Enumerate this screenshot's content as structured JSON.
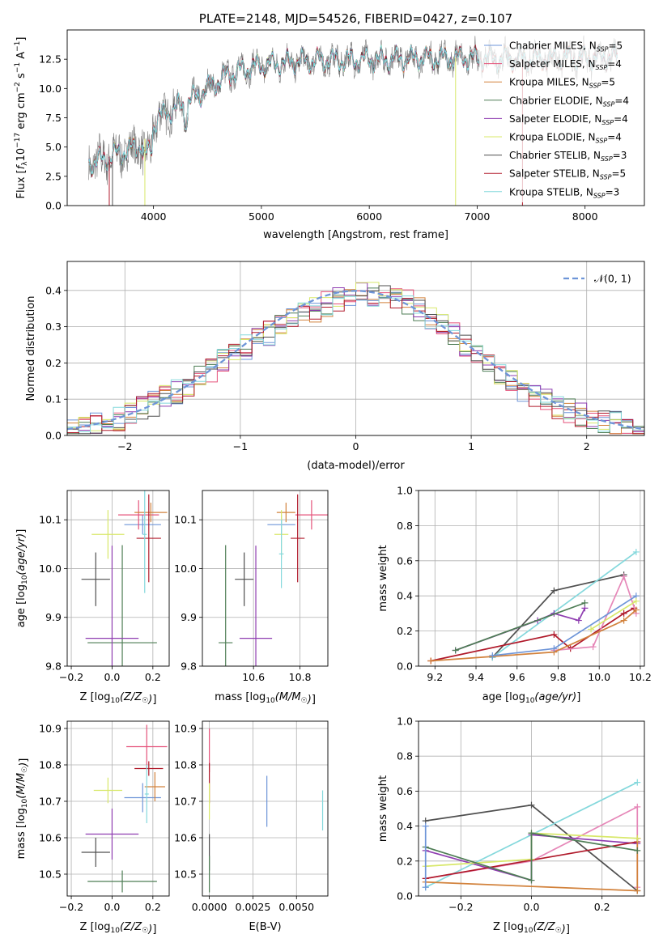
{
  "colors": {
    "chabrier_miles": "#6e95d8",
    "salpeter_miles": "#e5527a",
    "kroupa_miles": "#d2823c",
    "chabrier_elodie": "#4e7d55",
    "salpeter_elodie": "#8e3cb0",
    "kroupa_elodie": "#d8e86a",
    "chabrier_stelib": "#4f4f4f",
    "salpeter_stelib": "#b0192a",
    "kroupa_stelib": "#84d8dc",
    "pink": "#e687b8",
    "gauss": "#6e95d8"
  },
  "chart_data": [
    {
      "id": "spectrum",
      "type": "line",
      "title": "PLATE=2148, MJD=54526, FIBERID=0427, z=0.107",
      "xlabel": "wavelength [Angstrom, rest frame]",
      "ylabel": "Flux [f_λ 10^-17 erg cm^-2 s^-1 A^-1]",
      "xlim": [
        3200,
        8550
      ],
      "ylim": [
        0,
        15
      ],
      "xticks": [
        "4000",
        "5000",
        "6000",
        "7000",
        "8000"
      ],
      "yticks": [
        "0.0",
        "2.5",
        "5.0",
        "7.5",
        "10.0",
        "12.5"
      ],
      "legend": [
        {
          "name": "Chabrier MILES, N_SSP=5",
          "color": "chabrier_miles"
        },
        {
          "name": "Salpeter MILES, N_SSP=4",
          "color": "salpeter_miles"
        },
        {
          "name": "Kroupa MILES, N_SSP=5",
          "color": "kroupa_miles"
        },
        {
          "name": "Chabrier ELODIE, N_SSP=4",
          "color": "chabrier_elodie"
        },
        {
          "name": "Salpeter ELODIE, N_SSP=4",
          "color": "salpeter_elodie"
        },
        {
          "name": "Kroupa ELODIE, N_SSP=4",
          "color": "kroupa_elodie"
        },
        {
          "name": "Chabrier STELIB, N_SSP=3",
          "color": "chabrier_stelib"
        },
        {
          "name": "Salpeter STELIB, N_SSP=5",
          "color": "salpeter_stelib"
        },
        {
          "name": "Kroupa STELIB, N_SSP=3",
          "color": "kroupa_stelib"
        }
      ],
      "legend_placement": "right",
      "continuum": [
        [
          3400,
          3.6
        ],
        [
          3550,
          4.0
        ],
        [
          3700,
          4.5
        ],
        [
          3850,
          5.0
        ],
        [
          3950,
          6.0
        ],
        [
          4050,
          7.6
        ],
        [
          4300,
          8.7
        ],
        [
          4500,
          10.0
        ],
        [
          4700,
          11.2
        ],
        [
          4900,
          11.8
        ],
        [
          5200,
          12.2
        ],
        [
          5500,
          12.4
        ],
        [
          5800,
          12.4
        ],
        [
          6100,
          12.5
        ],
        [
          6500,
          12.6
        ],
        [
          6900,
          12.6
        ],
        [
          7300,
          12.5
        ],
        [
          7600,
          12.5
        ],
        [
          8000,
          12.6
        ],
        [
          8300,
          12.7
        ]
      ]
    },
    {
      "id": "residuals",
      "type": "line",
      "xlabel": "(data-model)/error",
      "ylabel": "Normed distribution",
      "xlim": [
        -2.5,
        2.5
      ],
      "ylim": [
        0,
        0.48
      ],
      "xticks": [
        "−2",
        "−1",
        "0",
        "1",
        "2"
      ],
      "yticks": [
        "0.0",
        "0.1",
        "0.2",
        "0.3",
        "0.4"
      ],
      "grid": true,
      "legend": [
        {
          "name": "𝒩(0, 1)",
          "color": "gauss"
        }
      ],
      "legend_placement": "top-right",
      "note": "step histograms of residuals for the nine fits plus N(0,1) curve"
    },
    {
      "id": "age_vs_Z",
      "type": "scatter",
      "xlabel": "Z [log10(Z/Z☉)]",
      "ylabel": "age [log10(age/yr)]",
      "xlim": [
        -0.22,
        0.28
      ],
      "ylim": [
        9.8,
        10.16
      ],
      "xticks": [
        "−0.2",
        "0.0",
        "0.2"
      ],
      "yticks": [
        "9.8",
        "9.9",
        "10.0",
        "10.1"
      ],
      "grid": true,
      "points": [
        {
          "x": 0.15,
          "y": 10.09,
          "xerr": 0.09,
          "yerr": 0.02,
          "color": "chabrier_miles"
        },
        {
          "x": 0.13,
          "y": 10.11,
          "xerr": 0.1,
          "yerr": 0.03,
          "color": "salpeter_miles"
        },
        {
          "x": 0.19,
          "y": 10.115,
          "xerr": 0.08,
          "yerr": 0.02,
          "color": "kroupa_miles"
        },
        {
          "x": 0.05,
          "y": 9.848,
          "xerr": 0.17,
          "yerr": 0.2,
          "color": "chabrier_elodie"
        },
        {
          "x": 0.0,
          "y": 9.857,
          "xerr": 0.13,
          "yerr": 0.19,
          "color": "salpeter_elodie"
        },
        {
          "x": -0.02,
          "y": 10.07,
          "xerr": 0.08,
          "yerr": 0.05,
          "color": "kroupa_elodie"
        },
        {
          "x": -0.08,
          "y": 9.978,
          "xerr": 0.07,
          "yerr": 0.055,
          "color": "chabrier_stelib"
        },
        {
          "x": 0.18,
          "y": 10.062,
          "xerr": 0.06,
          "yerr": 0.09,
          "color": "salpeter_stelib"
        },
        {
          "x": 0.16,
          "y": 10.07,
          "xerr": 0.01,
          "yerr": 0.12,
          "color": "kroupa_stelib"
        }
      ]
    },
    {
      "id": "age_vs_mass",
      "type": "scatter",
      "xlabel": "mass [log10(M/M☉)]",
      "xlim": [
        10.38,
        10.92
      ],
      "ylim": [
        9.8,
        10.16
      ],
      "xticks": [
        "10.6",
        "10.8"
      ],
      "yticks": [
        "9.8",
        "9.9",
        "10.0",
        "10.1"
      ],
      "grid": true,
      "points": [
        {
          "x": 10.72,
          "y": 10.09,
          "xerr": 0.06,
          "yerr": 0.02,
          "color": "chabrier_miles"
        },
        {
          "x": 10.85,
          "y": 10.11,
          "xerr": 0.07,
          "yerr": 0.03,
          "color": "salpeter_miles"
        },
        {
          "x": 10.74,
          "y": 10.115,
          "xerr": 0.04,
          "yerr": 0.02,
          "color": "kroupa_miles"
        },
        {
          "x": 10.48,
          "y": 9.848,
          "xerr": 0.03,
          "yerr": 0.2,
          "color": "chabrier_elodie"
        },
        {
          "x": 10.61,
          "y": 9.857,
          "xerr": 0.07,
          "yerr": 0.19,
          "color": "salpeter_elodie"
        },
        {
          "x": 10.72,
          "y": 10.07,
          "xerr": 0.03,
          "yerr": 0.05,
          "color": "kroupa_elodie"
        },
        {
          "x": 10.56,
          "y": 9.978,
          "xerr": 0.04,
          "yerr": 0.055,
          "color": "chabrier_stelib"
        },
        {
          "x": 10.79,
          "y": 10.062,
          "xerr": 0.03,
          "yerr": 0.09,
          "color": "salpeter_stelib"
        },
        {
          "x": 10.72,
          "y": 10.03,
          "xerr": 0.01,
          "yerr": 0.07,
          "color": "kroupa_stelib"
        }
      ]
    },
    {
      "id": "mw_vs_age",
      "type": "line",
      "xlabel": "age [log10(age/yr)]",
      "ylabel": "mass weight",
      "xlim": [
        9.12,
        10.22
      ],
      "ylim": [
        0,
        1
      ],
      "xticks": [
        "9.2",
        "9.4",
        "9.6",
        "9.8",
        "10.0",
        "10.2"
      ],
      "yticks": [
        "0.0",
        "0.2",
        "0.4",
        "0.6",
        "0.8",
        "1.0"
      ],
      "grid": true,
      "series": [
        {
          "color": "chabrier_stelib",
          "points": [
            [
              9.48,
              0.05
            ],
            [
              9.78,
              0.43
            ],
            [
              10.12,
              0.52
            ]
          ]
        },
        {
          "color": "kroupa_stelib",
          "points": [
            [
              9.48,
              0.05
            ],
            [
              10.18,
              0.65
            ]
          ]
        },
        {
          "color": "salpeter_elodie",
          "points": [
            [
              9.3,
              0.09
            ],
            [
              9.7,
              0.26
            ],
            [
              9.78,
              0.3
            ],
            [
              9.9,
              0.26
            ],
            [
              9.93,
              0.33
            ]
          ]
        },
        {
          "color": "salpeter_stelib",
          "points": [
            [
              9.18,
              0.03
            ],
            [
              9.78,
              0.18
            ],
            [
              9.86,
              0.1
            ],
            [
              10.12,
              0.3
            ],
            [
              10.17,
              0.33
            ]
          ]
        },
        {
          "color": "pink",
          "points": [
            [
              9.78,
              0.09
            ],
            [
              9.97,
              0.11
            ],
            [
              10.12,
              0.51
            ],
            [
              10.18,
              0.3
            ]
          ]
        },
        {
          "color": "kroupa_miles",
          "points": [
            [
              9.18,
              0.03
            ],
            [
              9.78,
              0.08
            ],
            [
              10.12,
              0.26
            ],
            [
              10.18,
              0.32
            ]
          ]
        },
        {
          "color": "chabrier_miles",
          "points": [
            [
              9.48,
              0.06
            ],
            [
              9.78,
              0.1
            ],
            [
              10.18,
              0.4
            ]
          ]
        },
        {
          "color": "kroupa_elodie",
          "points": [
            [
              9.96,
              0.21
            ],
            [
              10.18,
              0.37
            ]
          ]
        },
        {
          "color": "chabrier_elodie",
          "points": [
            [
              9.3,
              0.09
            ],
            [
              9.93,
              0.36
            ]
          ]
        }
      ]
    },
    {
      "id": "mass_vs_Z",
      "type": "scatter",
      "xlabel": "Z [log10(Z/Z☉)]",
      "ylabel": "mass [log10(M/M☉)]",
      "xlim": [
        -0.22,
        0.28
      ],
      "ylim": [
        10.44,
        10.92
      ],
      "xticks": [
        "−0.2",
        "0.0",
        "0.2"
      ],
      "yticks": [
        "10.5",
        "10.6",
        "10.7",
        "10.8",
        "10.9"
      ],
      "grid": true,
      "points": [
        {
          "x": 0.15,
          "y": 10.71,
          "xerr": 0.09,
          "yerr": 0.04,
          "color": "chabrier_miles"
        },
        {
          "x": 0.17,
          "y": 10.85,
          "xerr": 0.1,
          "yerr": 0.06,
          "color": "salpeter_miles"
        },
        {
          "x": 0.21,
          "y": 10.74,
          "xerr": 0.05,
          "yerr": 0.04,
          "color": "kroupa_miles"
        },
        {
          "x": 0.05,
          "y": 10.48,
          "xerr": 0.17,
          "yerr": 0.03,
          "color": "chabrier_elodie"
        },
        {
          "x": 0.0,
          "y": 10.61,
          "xerr": 0.13,
          "yerr": 0.07,
          "color": "salpeter_elodie"
        },
        {
          "x": -0.02,
          "y": 10.73,
          "xerr": 0.07,
          "yerr": 0.035,
          "color": "kroupa_elodie"
        },
        {
          "x": -0.08,
          "y": 10.56,
          "xerr": 0.07,
          "yerr": 0.04,
          "color": "chabrier_stelib"
        },
        {
          "x": 0.18,
          "y": 10.79,
          "xerr": 0.07,
          "yerr": 0.02,
          "color": "salpeter_stelib"
        },
        {
          "x": 0.17,
          "y": 10.72,
          "xerr": 0.01,
          "yerr": 0.08,
          "color": "kroupa_stelib"
        }
      ]
    },
    {
      "id": "mass_vs_EBV",
      "type": "scatter",
      "xlabel": "E(B-V)",
      "xlim": [
        -0.0004,
        0.0068
      ],
      "ylim": [
        10.44,
        10.92
      ],
      "xticks": [
        "0.0000",
        "0.0025",
        "0.0050"
      ],
      "yticks": [
        "10.5",
        "10.6",
        "10.7",
        "10.8",
        "10.9"
      ],
      "grid": true,
      "points": [
        {
          "x": 0.0033,
          "y": 10.7,
          "yerr": 0.07,
          "color": "chabrier_miles"
        },
        {
          "x": 0.0065,
          "y": 10.675,
          "yerr": 0.055,
          "color": "kroupa_stelib"
        },
        {
          "x": 0.0,
          "y": 10.84,
          "yerr": 0.06,
          "color": "salpeter_miles"
        },
        {
          "x": 0.0,
          "y": 10.75,
          "yerr": 0.055,
          "color": "salpeter_stelib"
        },
        {
          "x": 0.0,
          "y": 10.7,
          "yerr": 0.05,
          "color": "kroupa_elodie"
        },
        {
          "x": 0.0,
          "y": 10.56,
          "yerr": 0.05,
          "color": "chabrier_stelib"
        },
        {
          "x": 0.0,
          "y": 10.5,
          "yerr": 0.05,
          "color": "chabrier_elodie"
        }
      ]
    },
    {
      "id": "mw_vs_Z",
      "type": "line",
      "xlabel": "Z [log10(Z/Z☉)]",
      "ylabel": "mass weight",
      "xlim": [
        -0.32,
        0.32
      ],
      "ylim": [
        0,
        1
      ],
      "xticks": [
        "−0.2",
        "0.0",
        "0.2"
      ],
      "yticks": [
        "0.0",
        "0.2",
        "0.4",
        "0.6",
        "0.8",
        "1.0"
      ],
      "grid": true,
      "series": [
        {
          "color": "chabrier_stelib",
          "points": [
            [
              -0.3,
              0.43
            ],
            [
              0.0,
              0.52
            ],
            [
              0.3,
              0.03
            ]
          ]
        },
        {
          "color": "kroupa_stelib",
          "points": [
            [
              -0.3,
              0.05
            ],
            [
              0.3,
              0.65
            ]
          ]
        },
        {
          "color": "pink",
          "points": [
            [
              -0.3,
              0.1
            ],
            [
              0.0,
              0.2
            ],
            [
              0.3,
              0.51
            ],
            [
              0.3,
              0.05
            ]
          ]
        },
        {
          "color": "salpeter_elodie",
          "points": [
            [
              -0.3,
              0.26
            ],
            [
              0.0,
              0.09
            ],
            [
              0.0,
              0.35
            ],
            [
              0.3,
              0.3
            ]
          ]
        },
        {
          "color": "salpeter_stelib",
          "points": [
            [
              -0.3,
              0.1
            ],
            [
              0.3,
              0.31
            ],
            [
              0.3,
              0.33
            ]
          ]
        },
        {
          "color": "kroupa_miles",
          "points": [
            [
              -0.3,
              0.08
            ],
            [
              0.3,
              0.03
            ],
            [
              0.3,
              0.33
            ]
          ]
        },
        {
          "color": "kroupa_elodie",
          "points": [
            [
              -0.3,
              0.17
            ],
            [
              0.0,
              0.21
            ],
            [
              0.0,
              0.36
            ],
            [
              0.3,
              0.33
            ]
          ]
        },
        {
          "color": "chabrier_elodie",
          "points": [
            [
              -0.3,
              0.28
            ],
            [
              0.0,
              0.09
            ],
            [
              0.0,
              0.36
            ],
            [
              0.3,
              0.26
            ]
          ]
        },
        {
          "color": "chabrier_miles",
          "points": [
            [
              -0.3,
              0.05
            ],
            [
              -0.3,
              0.4
            ]
          ]
        }
      ]
    }
  ]
}
